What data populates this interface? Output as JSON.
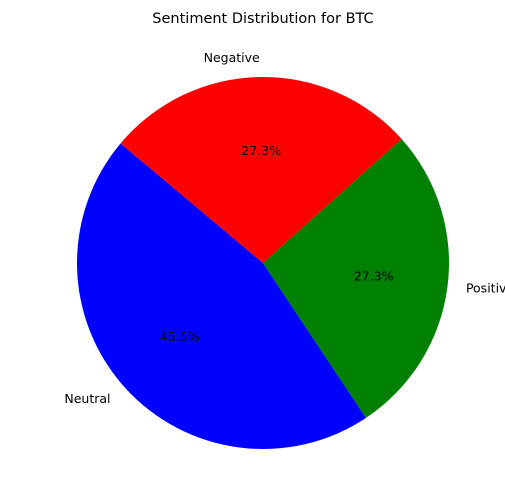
{
  "chart_data": {
    "type": "pie",
    "title": "Sentiment Distribution for BTC",
    "start_angle_deg": 140,
    "direction": "counterclockwise",
    "slices": [
      {
        "label": "Neutral",
        "value": 5,
        "percent_label": "45.5%",
        "color": "#0000ff"
      },
      {
        "label": "Positive",
        "value": 3,
        "percent_label": "27.3%",
        "color": "#008000"
      },
      {
        "label": "Negative",
        "value": 3,
        "percent_label": "27.3%",
        "color": "#ff0000"
      }
    ]
  }
}
